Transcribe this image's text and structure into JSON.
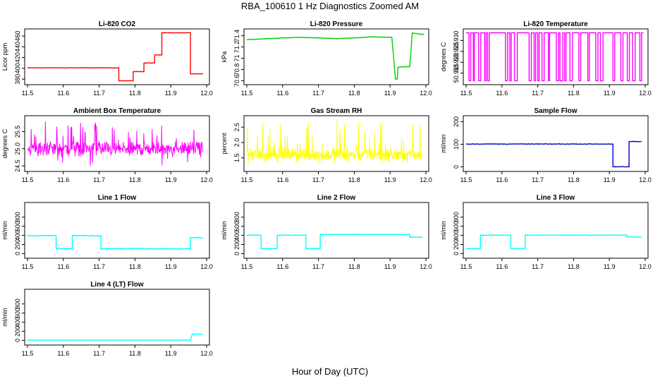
{
  "title": "RBA_100610  1 Hz Diagnostics Zoomed AM",
  "xlabel": "Hour of Day (UTC)",
  "chart_data": [
    {
      "type": "line",
      "title": "Li-820 CO2",
      "ylabel": "Licor ppm",
      "color": "#ff0000",
      "xlim": [
        11.5,
        12.0
      ],
      "ylim": [
        375,
        468
      ],
      "yticks": [
        380,
        400,
        420,
        440,
        460
      ],
      "xticks": [
        11.5,
        11.6,
        11.7,
        11.8,
        11.9,
        12.0
      ],
      "segments": [
        [
          11.5,
          401
        ],
        [
          11.755,
          401
        ],
        [
          11.755,
          377
        ],
        [
          11.795,
          377
        ],
        [
          11.795,
          394
        ],
        [
          11.825,
          394
        ],
        [
          11.825,
          410
        ],
        [
          11.855,
          410
        ],
        [
          11.855,
          425
        ],
        [
          11.875,
          425
        ],
        [
          11.875,
          466
        ],
        [
          11.955,
          466
        ],
        [
          11.955,
          390
        ],
        [
          11.99,
          390
        ]
      ],
      "noise": 0.6
    },
    {
      "type": "line",
      "title": "Li-820 Pressure",
      "ylabel": "kPa",
      "color": "#00cc00",
      "xlim": [
        11.5,
        12.0
      ],
      "ylim": [
        70.58,
        71.47
      ],
      "yticks": [
        70.6,
        70.8,
        71.0,
        71.2,
        71.4
      ],
      "xticks": [
        11.5,
        11.6,
        11.7,
        11.8,
        11.9,
        12.0
      ],
      "segments": [
        [
          11.5,
          71.33
        ],
        [
          11.6,
          71.36
        ],
        [
          11.65,
          71.37
        ],
        [
          11.7,
          71.36
        ],
        [
          11.75,
          71.35
        ],
        [
          11.8,
          71.36
        ],
        [
          11.85,
          71.38
        ],
        [
          11.905,
          71.37
        ],
        [
          11.915,
          70.63
        ],
        [
          11.92,
          70.63
        ],
        [
          11.922,
          70.84
        ],
        [
          11.955,
          70.85
        ],
        [
          11.962,
          71.45
        ],
        [
          11.99,
          71.42
        ],
        [
          11.995,
          71.44
        ]
      ],
      "noise": 0.006
    },
    {
      "type": "line",
      "title": "Li-820 Temperature",
      "ylabel": "degrees C",
      "color": "#ff00ff",
      "xlim": [
        11.5,
        12.0
      ],
      "ylim": [
        50.911,
        50.934
      ],
      "yticks": [
        50.915,
        50.92,
        50.925,
        50.93
      ],
      "ytick_labels": [
        "50.915",
        "50.920",
        "50.925",
        "50.930"
      ],
      "xticks": [
        11.5,
        11.6,
        11.7,
        11.8,
        11.9,
        12.0
      ],
      "levels": [
        50.9115,
        50.9335
      ],
      "toggle_times": [
        11.508,
        11.513,
        11.52,
        11.523,
        11.535,
        11.541,
        11.552,
        11.556,
        11.56,
        11.565,
        11.61,
        11.616,
        11.622,
        11.626,
        11.635,
        11.643,
        11.676,
        11.682,
        11.69,
        11.694,
        11.7,
        11.704,
        11.712,
        11.718,
        11.73,
        11.733,
        11.752,
        11.758,
        11.762,
        11.77,
        11.775,
        11.779,
        11.79,
        11.797,
        11.815,
        11.82,
        11.84,
        11.844,
        11.862,
        11.868,
        11.875,
        11.882,
        11.91,
        11.915,
        11.932,
        11.938,
        11.95,
        11.956,
        11.965,
        11.972,
        11.985,
        11.99
      ]
    },
    {
      "type": "line",
      "title": "Ambient Box Temperature",
      "ylabel": "degrees C",
      "color": "#ff00ff",
      "xlim": [
        11.5,
        12.0
      ],
      "ylim": [
        24.42,
        25.88
      ],
      "yticks": [
        24.5,
        25.0,
        25.5
      ],
      "ytick_labels": [
        "24.5",
        "25.0",
        "25.5"
      ],
      "xticks": [
        11.5,
        11.6,
        11.7,
        11.8,
        11.9,
        12.0
      ],
      "noise_band": {
        "center": 25.0,
        "spread": 0.3,
        "peak_min": 24.5,
        "peak_max": 25.8
      }
    },
    {
      "type": "line",
      "title": "Gas Stream RH",
      "ylabel": "percent",
      "color": "#ffff00",
      "xlim": [
        11.5,
        12.0
      ],
      "ylim": [
        1.15,
        2.78
      ],
      "yticks": [
        1.5,
        2.0,
        2.5
      ],
      "ytick_labels": [
        "1.5",
        "2.0",
        "2.5"
      ],
      "xticks": [
        11.5,
        11.6,
        11.7,
        11.8,
        11.9,
        12.0
      ],
      "noise_band": {
        "center": 1.6,
        "spread": 0.3,
        "peak_min": 1.3,
        "peak_max": 2.7
      }
    },
    {
      "type": "line",
      "title": "Sample Flow",
      "ylabel": "ml/min",
      "color": "#0000cc",
      "xlim": [
        11.5,
        12.0
      ],
      "ylim": [
        -8,
        214
      ],
      "yticks": [
        0,
        100,
        200
      ],
      "xticks": [
        11.5,
        11.6,
        11.7,
        11.8,
        11.9,
        12.0
      ],
      "segments": [
        [
          11.5,
          101
        ],
        [
          11.91,
          101
        ],
        [
          11.91,
          0
        ],
        [
          11.955,
          0
        ],
        [
          11.955,
          112
        ],
        [
          11.99,
          112
        ]
      ],
      "noise": 2
    },
    {
      "type": "line",
      "title": "Line 1 Flow",
      "ylabel": "ml/min",
      "color": "#00ffff",
      "xlim": [
        11.5,
        12.0
      ],
      "ylim": [
        -40,
        1060
      ],
      "yticks": [
        0,
        200,
        400,
        600,
        800
      ],
      "xticks": [
        11.5,
        11.6,
        11.7,
        11.8,
        11.9,
        12.0
      ],
      "segments": [
        [
          11.5,
          395
        ],
        [
          11.58,
          395
        ],
        [
          11.58,
          110
        ],
        [
          11.625,
          110
        ],
        [
          11.625,
          395
        ],
        [
          11.705,
          395
        ],
        [
          11.705,
          110
        ],
        [
          11.955,
          105
        ],
        [
          11.955,
          350
        ],
        [
          11.99,
          350
        ]
      ],
      "noise": 18
    },
    {
      "type": "line",
      "title": "Line 2 Flow",
      "ylabel": "ml/min",
      "color": "#00ffff",
      "xlim": [
        11.5,
        12.0
      ],
      "ylim": [
        -40,
        1060
      ],
      "yticks": [
        0,
        200,
        400,
        600,
        800
      ],
      "xticks": [
        11.5,
        11.6,
        11.7,
        11.8,
        11.9,
        12.0
      ],
      "segments": [
        [
          11.5,
          405
        ],
        [
          11.54,
          405
        ],
        [
          11.54,
          110
        ],
        [
          11.585,
          110
        ],
        [
          11.585,
          405
        ],
        [
          11.665,
          405
        ],
        [
          11.665,
          110
        ],
        [
          11.705,
          110
        ],
        [
          11.705,
          420
        ],
        [
          11.955,
          420
        ],
        [
          11.955,
          360
        ],
        [
          11.99,
          360
        ]
      ],
      "noise": 10
    },
    {
      "type": "line",
      "title": "Line 3 Flow",
      "ylabel": "ml/min",
      "color": "#00ffff",
      "xlim": [
        11.5,
        12.0
      ],
      "ylim": [
        -40,
        1060
      ],
      "yticks": [
        0,
        200,
        400,
        600,
        800
      ],
      "xticks": [
        11.5,
        11.6,
        11.7,
        11.8,
        11.9,
        12.0
      ],
      "segments": [
        [
          11.5,
          110
        ],
        [
          11.54,
          110
        ],
        [
          11.54,
          405
        ],
        [
          11.625,
          405
        ],
        [
          11.625,
          110
        ],
        [
          11.665,
          110
        ],
        [
          11.665,
          405
        ],
        [
          11.95,
          405
        ],
        [
          11.95,
          365
        ],
        [
          11.99,
          365
        ]
      ],
      "noise": 8
    },
    {
      "type": "line",
      "title": "Line 4 (LT) Flow",
      "ylabel": "ml/min",
      "color": "#00ffff",
      "xlim": [
        11.5,
        12.0
      ],
      "ylim": [
        -40,
        1060
      ],
      "yticks": [
        0,
        200,
        400,
        600,
        800
      ],
      "xticks": [
        11.5,
        11.6,
        11.7,
        11.8,
        11.9,
        12.0
      ],
      "segments": [
        [
          11.5,
          5
        ],
        [
          11.955,
          5
        ],
        [
          11.96,
          140
        ],
        [
          11.99,
          135
        ]
      ],
      "noise": 2
    }
  ]
}
